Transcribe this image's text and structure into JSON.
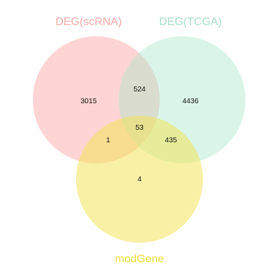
{
  "diagram": {
    "type": "venn-3",
    "sets": [
      {
        "id": "A",
        "label": "DEG(scRNA)",
        "color": "#ff9999",
        "label_color": "#f7a8a8"
      },
      {
        "id": "B",
        "label": "DEG(TCGA)",
        "color": "#a8e6c8",
        "label_color": "#a8e0c6"
      },
      {
        "id": "C",
        "label": "modGene",
        "color": "#f2e35a",
        "label_color": "#eedd3a"
      }
    ],
    "regions": {
      "A_only": "3015",
      "B_only": "4436",
      "C_only": "4",
      "AB_only": "524",
      "AC_only": "1",
      "BC_only": "435",
      "ABC": "53"
    }
  }
}
